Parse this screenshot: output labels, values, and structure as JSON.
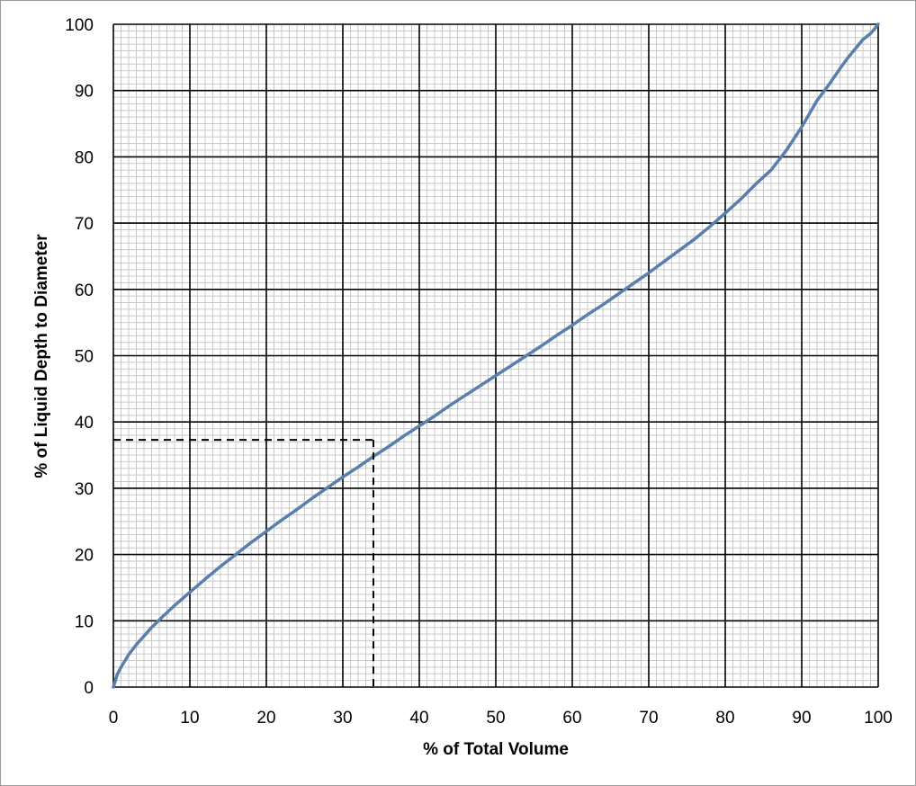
{
  "chart_data": {
    "type": "line",
    "title": "",
    "xlabel": "% of Total Volume",
    "ylabel": "% of Liquid Depth to Diameter",
    "xlim": [
      0,
      100
    ],
    "ylim": [
      0,
      100
    ],
    "x_ticks": [
      0,
      10,
      20,
      30,
      40,
      50,
      60,
      70,
      80,
      90,
      100
    ],
    "y_ticks": [
      0,
      10,
      20,
      30,
      40,
      50,
      60,
      70,
      80,
      90,
      100
    ],
    "x_tick_labels": [
      "0",
      "10",
      "20",
      "30",
      "40",
      "50",
      "60",
      "70",
      "80",
      "90",
      "100"
    ],
    "y_tick_labels": [
      "0",
      "10",
      "20",
      "30",
      "40",
      "50",
      "60",
      "70",
      "80",
      "90",
      "100"
    ],
    "grid": {
      "major": true,
      "minor": true,
      "minor_step": 1
    },
    "legend": "none",
    "series": [
      {
        "color": "#5a7fad",
        "x": [
          0,
          0.5,
          1.0,
          2.0,
          3.0,
          4.0,
          5.0,
          6.5,
          8.0,
          10.0,
          12.0,
          14.0,
          16.0,
          18.0,
          20.0,
          22.0,
          24.0,
          26.0,
          28.0,
          30.0,
          32.0,
          34.0,
          36.0,
          38.0,
          40.0,
          42.0,
          44.0,
          46.0,
          48.0,
          50.0,
          52.0,
          54.0,
          56.0,
          58.0,
          60.0,
          62.0,
          64.0,
          66.0,
          68.0,
          70.0,
          72.0,
          74.0,
          76.0,
          78.0,
          80.0,
          82.0,
          84.0,
          86.0,
          88.0,
          90.0,
          92.0,
          93.5,
          95.0,
          96.0,
          97.0,
          98.0,
          99.0,
          99.5,
          100
        ],
        "y": [
          0,
          1.9,
          3.0,
          4.9,
          6.4,
          7.7,
          9.0,
          10.7,
          12.3,
          14.3,
          16.3,
          18.2,
          20.0,
          21.8,
          23.5,
          25.2,
          26.8,
          28.5,
          30.1,
          31.7,
          33.2,
          34.8,
          36.3,
          37.9,
          39.4,
          40.9,
          42.5,
          44.0,
          45.5,
          47.0,
          48.5,
          50.0,
          51.5,
          53.1,
          54.6,
          56.2,
          57.7,
          59.3,
          60.9,
          62.5,
          64.2,
          65.9,
          67.6,
          69.5,
          71.5,
          73.6,
          75.9,
          78.0,
          81.0,
          84.5,
          88.5,
          90.8,
          93.3,
          94.9,
          96.3,
          97.7,
          98.6,
          99.3,
          100
        ]
      }
    ],
    "annotation": {
      "style": "dashed",
      "color": "#000000",
      "x": 34,
      "y": 37.3
    }
  }
}
